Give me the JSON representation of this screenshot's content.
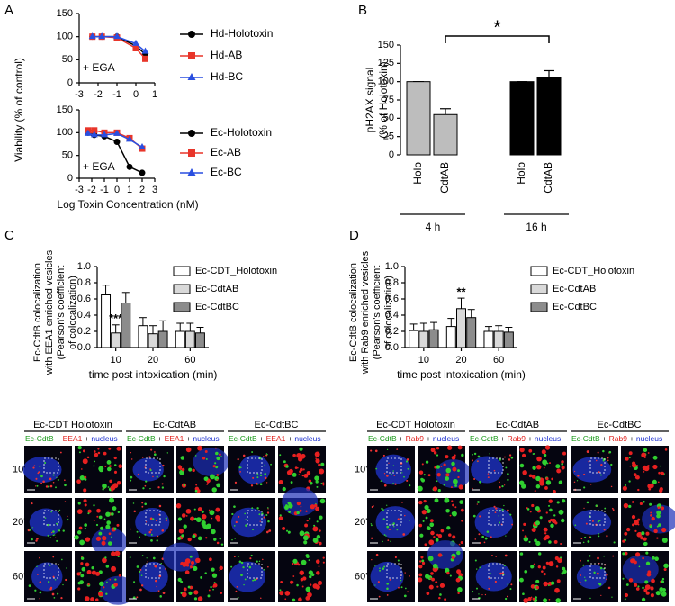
{
  "chart_data": [
    {
      "type": "line",
      "panel": "A",
      "x": [
        -2.3,
        -1.8,
        -1,
        0,
        0.5
      ],
      "series": [
        {
          "name": "Hd-Holotoxin",
          "color": "#000000",
          "marker": "circle",
          "values": [
            100,
            100,
            100,
            80,
            62
          ]
        },
        {
          "name": "Hd-AB",
          "color": "#e8352a",
          "marker": "square",
          "values": [
            100,
            100,
            98,
            75,
            52
          ]
        },
        {
          "name": "Hd-BC",
          "color": "#2a4fe0",
          "marker": "triangle",
          "values": [
            100,
            100,
            100,
            85,
            68
          ]
        }
      ],
      "xlim": [
        -3,
        1
      ],
      "xticks": [
        -3,
        -2,
        -1,
        0,
        1
      ],
      "ylim": [
        0,
        150
      ],
      "yticks": [
        0,
        50,
        100,
        150
      ],
      "annotation": "+ EGA"
    },
    {
      "type": "line",
      "x": [
        -2.3,
        -1.8,
        -1,
        0,
        1,
        2
      ],
      "series": [
        {
          "name": "Ec-Holotoxin",
          "color": "#000000",
          "marker": "circle",
          "values": [
            100,
            95,
            92,
            80,
            25,
            12
          ]
        },
        {
          "name": "Ec-AB",
          "color": "#e8352a",
          "marker": "square",
          "values": [
            105,
            105,
            100,
            100,
            88,
            65
          ]
        },
        {
          "name": "Ec-BC",
          "color": "#2a4fe0",
          "marker": "triangle",
          "values": [
            98,
            95,
            95,
            98,
            85,
            68
          ]
        }
      ],
      "xlim": [
        -3,
        3
      ],
      "xticks": [
        -3,
        -2,
        -1,
        0,
        1,
        2,
        3
      ],
      "ylim": [
        0,
        150
      ],
      "yticks": [
        0,
        50,
        100,
        150
      ],
      "xlabel": "Log Toxin Concentration (nM)",
      "ylabel": "Viability (% of control)",
      "annotation": "+ EGA"
    },
    {
      "type": "bar",
      "panel": "B",
      "categories": [
        "Holo",
        "CdtAB",
        "Holo",
        "CdtAB"
      ],
      "groups": [
        "4 h",
        "16 h"
      ],
      "values": [
        100,
        55,
        100,
        106
      ],
      "errors": [
        0,
        8,
        0,
        9
      ],
      "colors": [
        "#bdbdbd",
        "#bdbdbd",
        "#000000",
        "#000000"
      ],
      "ylim": [
        0,
        150
      ],
      "yticks": [
        0,
        25,
        50,
        75,
        100,
        125,
        150
      ],
      "ylabel": [
        "pH2AX signal",
        "(% of Holotoxin)"
      ],
      "annotation": "*"
    },
    {
      "type": "grouped_bar",
      "panel": "C",
      "categories": [
        "10",
        "20",
        "60"
      ],
      "series": [
        {
          "name": "Ec-CDT_Holotoxin",
          "color": "#ffffff",
          "values": [
            0.65,
            0.27,
            0.2
          ],
          "errors": [
            0.12,
            0.1,
            0.1
          ]
        },
        {
          "name": "Ec-CdtAB",
          "color": "#d9d9d9",
          "values": [
            0.18,
            0.17,
            0.2
          ],
          "errors": [
            0.1,
            0.1,
            0.1
          ]
        },
        {
          "name": "Ec-CdtBC",
          "color": "#8c8c8c",
          "values": [
            0.55,
            0.2,
            0.18
          ],
          "errors": [
            0.13,
            0.13,
            0.07
          ]
        }
      ],
      "ylim": [
        0,
        1
      ],
      "yticks": [
        {
          "value": 0,
          "label": "0.0"
        },
        0.2,
        0.4,
        0.6,
        0.8,
        {
          "value": 1,
          "label": "1.0"
        }
      ],
      "xlabel": "time post intoxication (min)",
      "ylabel": [
        "Ec-CdtB colocalization",
        "with EEA1 enriched vesicles",
        "(Pearson's coefficient",
        "of colocalization)"
      ],
      "annotation": "***"
    },
    {
      "type": "grouped_bar",
      "panel": "D",
      "categories": [
        "10",
        "20",
        "60"
      ],
      "series": [
        {
          "name": "Ec-CDT_Holotoxin",
          "color": "#ffffff",
          "values": [
            0.21,
            0.26,
            0.2
          ],
          "errors": [
            0.08,
            0.1,
            0.06
          ]
        },
        {
          "name": "Ec-CdtAB",
          "color": "#d9d9d9",
          "values": [
            0.2,
            0.48,
            0.2
          ],
          "errors": [
            0.1,
            0.13,
            0.07
          ]
        },
        {
          "name": "Ec-CdtBC",
          "color": "#8c8c8c",
          "values": [
            0.22,
            0.37,
            0.19
          ],
          "errors": [
            0.09,
            0.1,
            0.06
          ]
        }
      ],
      "ylim": [
        0,
        1
      ],
      "yticks": [
        {
          "value": 0,
          "label": "0.0"
        },
        0.2,
        0.4,
        0.6,
        0.8,
        {
          "value": 1,
          "label": "1.0"
        }
      ],
      "xlabel": "time post intoxication (min)",
      "ylabel": [
        "Ec-CdtB colocalization",
        "with Rab9 enriched vesicles",
        "(Pearson's coefficient",
        "of colocalization)"
      ],
      "annotation": "**"
    }
  ],
  "image_panels": [
    {
      "headers": [
        "Ec-CDT Holotoxin",
        "Ec-CdtAB",
        "Ec-CdtBC"
      ],
      "stain": [
        "Ec-CdtB",
        "+",
        "EEA1",
        "+",
        "nucleus"
      ],
      "rows": [
        "10'",
        "20'",
        "60'"
      ]
    },
    {
      "headers": [
        "Ec-CDT Holotoxin",
        "Ec-CdtAB",
        "Ec-CdtBC"
      ],
      "stain": [
        "Ec-CdtB",
        "+",
        "Rab9",
        "+",
        "nucleus"
      ],
      "rows": [
        "10'",
        "20'",
        "60'"
      ]
    }
  ]
}
